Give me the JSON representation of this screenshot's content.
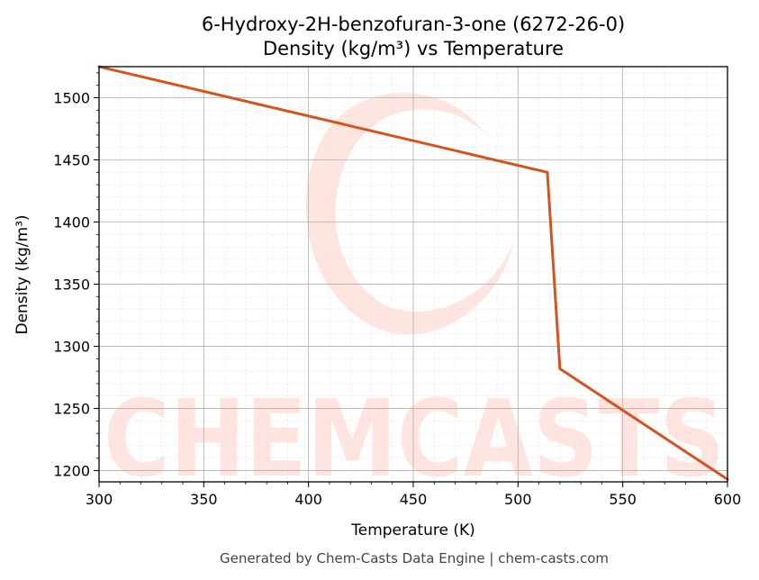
{
  "chart_data": {
    "type": "line",
    "title": "6-Hydroxy-2H-benzofuran-3-one (6272-26-0)",
    "subtitle": "Density (kg/m³) vs Temperature",
    "xlabel": "Temperature (K)",
    "ylabel": "Density (kg/m³)",
    "xlim": [
      300,
      600
    ],
    "ylim": [
      1191,
      1525
    ],
    "x_ticks": [
      300,
      350,
      400,
      450,
      500,
      550,
      600
    ],
    "y_ticks": [
      1200,
      1250,
      1300,
      1350,
      1400,
      1450,
      1500
    ],
    "grid": true,
    "series": [
      {
        "color": "#d4531f",
        "points": [
          {
            "x": 300,
            "y": 1525
          },
          {
            "x": 514,
            "y": 1440
          },
          {
            "x": 520,
            "y": 1282
          },
          {
            "x": 600,
            "y": 1193
          }
        ]
      }
    ],
    "watermark": "CHEMCASTS"
  },
  "footer": "Generated by Chem-Casts Data Engine | chem-casts.com"
}
